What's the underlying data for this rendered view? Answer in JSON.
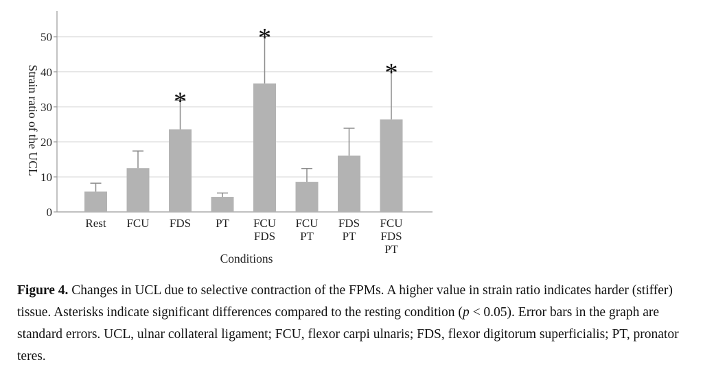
{
  "chart_data": {
    "type": "bar",
    "categories": [
      [
        "Rest"
      ],
      [
        "FCU"
      ],
      [
        "FDS"
      ],
      [
        "PT"
      ],
      [
        "FCU",
        "FDS"
      ],
      [
        "FCU",
        "PT"
      ],
      [
        "FDS",
        "PT"
      ],
      [
        "FCU",
        "FDS",
        "PT"
      ]
    ],
    "values": [
      5.8,
      12.5,
      23.6,
      4.3,
      36.7,
      8.6,
      16.1,
      26.4
    ],
    "error_upper": [
      8.2,
      17.4,
      31.9,
      5.4,
      50.1,
      12.4,
      23.9,
      40.2
    ],
    "significant": [
      false,
      false,
      true,
      false,
      true,
      false,
      false,
      true
    ],
    "significance_marker": "*",
    "xlabel": "Conditions",
    "ylabel": "Strain ratio of the UCL",
    "ylim": [
      0,
      57
    ],
    "yticks": [
      0,
      10,
      20,
      30,
      40,
      50
    ],
    "grid": true,
    "bar_color": "#b3b3b3",
    "error_bar_color": "#8c8c8c",
    "grid_color": "#d6d6d6"
  },
  "caption": {
    "label": "Figure 4.",
    "text": " Changes in UCL due to selective contraction of the FPMs. A higher value in strain ratio indicates harder (stiffer) tissue. Asterisks indicate significant differences compared to the resting condition (",
    "p_symbol": "p",
    "text_after": " < 0.05). Error bars in the graph are standard errors. UCL, ulnar collateral ligament; FCU, flexor carpi ulnaris; FDS, flexor digitorum superficialis; PT, pronator teres."
  }
}
